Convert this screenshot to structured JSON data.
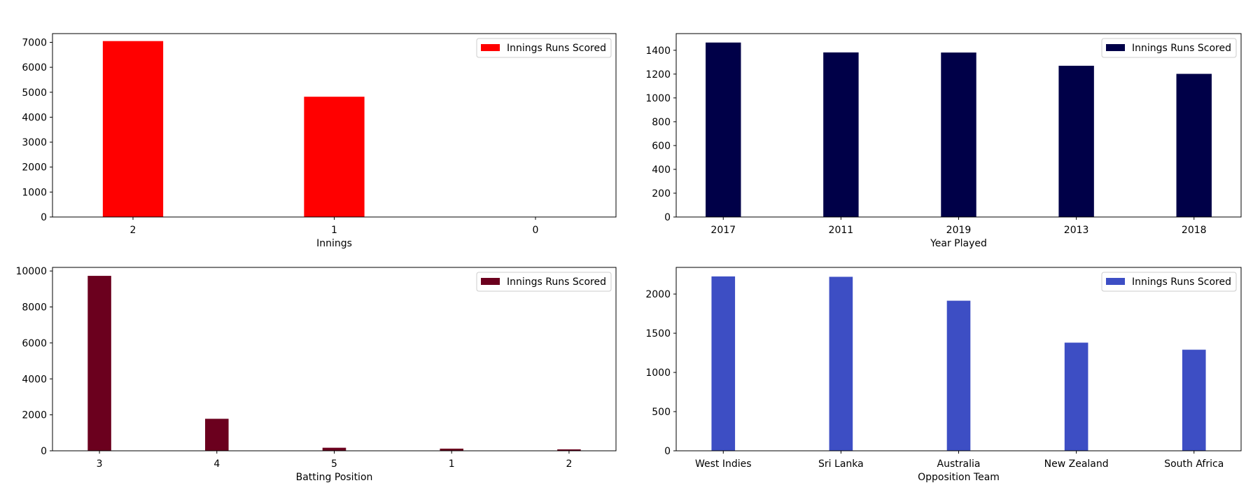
{
  "chart_data": [
    {
      "type": "bar",
      "xlabel": "Innings",
      "ylabel": "",
      "categories": [
        "2",
        "1",
        "0"
      ],
      "series": [
        {
          "name": "Innings Runs Scored",
          "values": [
            7050,
            4820,
            0
          ]
        }
      ],
      "ylim": [
        0,
        7350
      ],
      "yticks": [
        0,
        1000,
        2000,
        3000,
        4000,
        5000,
        6000,
        7000
      ],
      "color": "#ff0000",
      "bar_width": 0.3,
      "legend": "top-right",
      "grid": false
    },
    {
      "type": "bar",
      "xlabel": "Year Played",
      "ylabel": "",
      "categories": [
        "2017",
        "2011",
        "2019",
        "2013",
        "2018"
      ],
      "series": [
        {
          "name": "Innings Runs Scored",
          "values": [
            1465,
            1382,
            1381,
            1270,
            1202
          ]
        }
      ],
      "ylim": [
        0,
        1540
      ],
      "yticks": [
        0,
        200,
        400,
        600,
        800,
        1000,
        1200,
        1400
      ],
      "color": "#000048",
      "bar_width": 0.3,
      "legend": "top-right",
      "grid": false
    },
    {
      "type": "bar",
      "xlabel": "Batting Position",
      "ylabel": "",
      "categories": [
        "3",
        "4",
        "5",
        "1",
        "2"
      ],
      "series": [
        {
          "name": "Innings Runs Scored",
          "values": [
            9730,
            1780,
            170,
            120,
            80
          ]
        }
      ],
      "ylim": [
        0,
        10200
      ],
      "yticks": [
        0,
        2000,
        4000,
        6000,
        8000,
        10000
      ],
      "color": "#6b001e",
      "bar_width": 0.2,
      "legend": "top-right",
      "grid": false
    },
    {
      "type": "bar",
      "xlabel": "Opposition Team",
      "ylabel": "",
      "categories": [
        "West Indies",
        "Sri Lanka",
        "Australia",
        "New Zealand",
        "South Africa"
      ],
      "series": [
        {
          "name": "Innings Runs Scored",
          "values": [
            2225,
            2220,
            1915,
            1380,
            1290
          ]
        }
      ],
      "ylim": [
        0,
        2340
      ],
      "yticks": [
        0,
        500,
        1000,
        1500,
        2000
      ],
      "color": "#3d4ec4",
      "bar_width": 0.2,
      "legend": "top-right",
      "grid": false
    }
  ]
}
